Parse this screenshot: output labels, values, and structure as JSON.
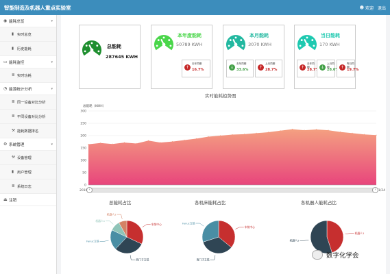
{
  "header": {
    "title": "智能制造及机器人重点实验室",
    "user_label": "欢迎",
    "logout_label": "退出"
  },
  "sidebar": {
    "items": [
      {
        "label": "能耗总览",
        "icon": "gauge-icon",
        "expanded": true,
        "children": [
          {
            "label": "实时总览",
            "icon": "bar-chart-icon"
          },
          {
            "label": "历史能耗",
            "icon": "bar-chart-icon"
          }
        ]
      },
      {
        "label": "能耗监控",
        "icon": "monitor-icon",
        "expanded": true,
        "children": [
          {
            "label": "实时功耗",
            "icon": "list-icon"
          }
        ]
      },
      {
        "label": "能源统计分析",
        "icon": "pie-icon",
        "expanded": true,
        "children": [
          {
            "label": "同一设备对比分析",
            "icon": "list-icon"
          },
          {
            "label": "不同设备对比分析",
            "icon": "list-icon"
          },
          {
            "label": "能耗数据排名",
            "icon": "wrench-icon"
          }
        ]
      },
      {
        "label": "系统管理",
        "icon": "gear-icon",
        "expanded": true,
        "children": [
          {
            "label": "设备管理",
            "icon": "wrench-icon"
          },
          {
            "label": "用户管理",
            "icon": "bar-chart-icon"
          },
          {
            "label": "系统日志",
            "icon": "list-icon"
          }
        ]
      },
      {
        "label": "注销",
        "icon": "logout-icon",
        "expanded": false,
        "children": []
      }
    ]
  },
  "cards": [
    {
      "title": "总能耗",
      "value": "287645 KWH",
      "color": "#1f8f2f"
    },
    {
      "title": "本年度能耗",
      "value": "50789 KWH",
      "color": "#4ad64a",
      "subs": [
        {
          "label": "去年同期",
          "pct": "16.7%",
          "dir": "up",
          "color": "#c62828"
        }
      ]
    },
    {
      "title": "本月能耗",
      "value": "3070 KWH",
      "color": "#22b8a0",
      "subs": [
        {
          "label": "去年同期",
          "pct": "33.6%",
          "dir": "down",
          "color": "#43a047"
        },
        {
          "label": "上月同期",
          "pct": "28.7%",
          "dir": "up",
          "color": "#c62828"
        }
      ]
    },
    {
      "title": "当日能耗",
      "value": "170 KWH",
      "color": "#1ec9b0",
      "subs": [
        {
          "label": "去年同期",
          "pct": "28.7%",
          "dir": "up",
          "color": "#c62828"
        },
        {
          "label": "上月同期",
          "pct": "28.6%",
          "dir": "down",
          "color": "#43a047"
        },
        {
          "label": "昨日同期",
          "pct": "19.7%",
          "dir": "up",
          "color": "#c62828"
        }
      ]
    }
  ],
  "chart_data": [
    {
      "type": "area",
      "title": "实时能耗趋势图",
      "ylabel": "总能耗（KWH）",
      "ylim": [
        0,
        300
      ],
      "yticks": [
        0,
        50,
        100,
        150,
        200,
        250,
        300
      ],
      "x_ticks": [
        "2016/10/31",
        "2016/11/2",
        "2016/11/4",
        "2016/11/6",
        "2016/11/8",
        "2016/11/10",
        "2016/11/12",
        "2016/11/14",
        "2016/11/16",
        "2016/11/18",
        "2016/11/20",
        "2016/11/22",
        "2016/11/24"
      ],
      "values": [
        165,
        170,
        166,
        172,
        168,
        180,
        172,
        176,
        182,
        188,
        196,
        200,
        204,
        206,
        210,
        214,
        220,
        226,
        222,
        225,
        222,
        215,
        210,
        205,
        202
      ],
      "gradient": [
        "#f4a081",
        "#e8457c"
      ],
      "grid": true
    },
    {
      "type": "pie",
      "title": "总能耗占比",
      "slices": [
        {
          "label": "车削中心",
          "value": 32,
          "color": "#c62f2f"
        },
        {
          "label": "西门子立铣",
          "value": 30,
          "color": "#2f4554"
        },
        {
          "label": "Fanuc立铣",
          "value": 20,
          "color": "#4a8ea4"
        },
        {
          "label": "机器人1",
          "value": 10,
          "color": "#8fc4b8"
        },
        {
          "label": "机器人2",
          "value": 8,
          "color": "#d48265"
        }
      ]
    },
    {
      "type": "pie",
      "title": "各机床能耗占比",
      "slices": [
        {
          "label": "车削中心",
          "value": 36,
          "color": "#c62f2f"
        },
        {
          "label": "西门子立铣",
          "value": 34,
          "color": "#2f4554"
        },
        {
          "label": "Fanuc立铣",
          "value": 30,
          "color": "#4a8ea4"
        }
      ]
    },
    {
      "type": "pie",
      "title": "各机器人能耗占比",
      "slices": [
        {
          "label": "机器人1",
          "value": 45,
          "color": "#c62f2f"
        },
        {
          "label": "机器人2",
          "value": 55,
          "color": "#2f4554"
        }
      ]
    }
  ],
  "watermark": {
    "text": "数字化学会"
  }
}
